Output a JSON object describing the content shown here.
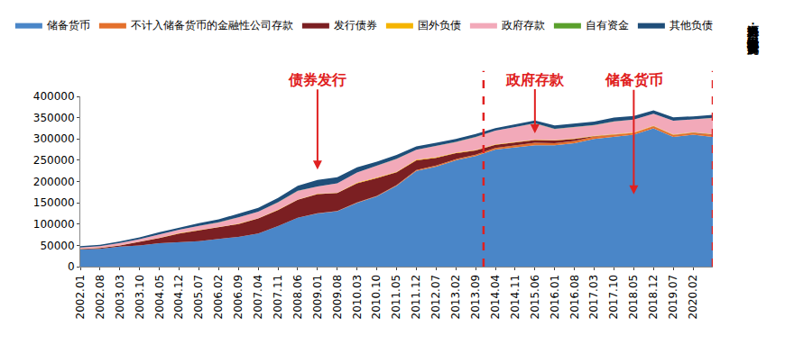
{
  "chart_data": {
    "type": "area",
    "stacked": true,
    "grid": false,
    "legend": "top",
    "source": "资料来源：中国人民银行  华西证券研究所",
    "categories": [
      "2002.01",
      "2002.08",
      "2003.03",
      "2003.10",
      "2004.05",
      "2004.12",
      "2005.07",
      "2006.02",
      "2006.09",
      "2007.04",
      "2007.11",
      "2008.06",
      "2009.01",
      "2009.08",
      "2010.03",
      "2010.10",
      "2011.05",
      "2011.12",
      "2012.07",
      "2013.02",
      "2013.09",
      "2014.04",
      "2014.11",
      "2015.06",
      "2016.01",
      "2016.08",
      "2017.03",
      "2017.10",
      "2018.05",
      "2018.12",
      "2019.07",
      "2020.02",
      null
    ],
    "ylim": [
      0,
      400000
    ],
    "yticks": [
      0,
      50000,
      100000,
      150000,
      200000,
      250000,
      300000,
      350000,
      400000
    ],
    "series": [
      {
        "name": "储备货币",
        "color": "#4a86c8",
        "values": [
          40000,
          42000,
          47000,
          50000,
          55000,
          58000,
          60000,
          65000,
          70000,
          78000,
          95000,
          115000,
          125000,
          130000,
          150000,
          165000,
          190000,
          225000,
          235000,
          250000,
          260000,
          275000,
          280000,
          285000,
          285000,
          290000,
          300000,
          305000,
          310000,
          325000,
          305000,
          310000,
          305000
        ]
      },
      {
        "name": "不计入储备货币的金融性公司存款",
        "color": "#e4702c",
        "values": [
          0,
          0,
          0,
          0,
          0,
          0,
          0,
          0,
          0,
          0,
          0,
          0,
          500,
          800,
          1000,
          1200,
          1500,
          2000,
          2500,
          2500,
          3000,
          4000,
          5000,
          6000,
          5000,
          5000,
          5500,
          5000,
          4500,
          4500,
          4000,
          4000,
          4500
        ]
      },
      {
        "name": "发行债券",
        "color": "#7b1f22",
        "values": [
          1500,
          2000,
          3000,
          8000,
          12000,
          20000,
          25000,
          28000,
          30000,
          35000,
          38000,
          42000,
          45000,
          42000,
          45000,
          42000,
          30000,
          23000,
          18000,
          14000,
          10000,
          7000,
          6500,
          6500,
          6500,
          5000,
          1000,
          0,
          0,
          700,
          700,
          900,
          900
        ]
      },
      {
        "name": "国外负债",
        "color": "#f5b400",
        "values": [
          400,
          400,
          500,
          500,
          600,
          600,
          700,
          800,
          900,
          900,
          900,
          900,
          900,
          1000,
          1200,
          1400,
          1500,
          1500,
          1400,
          1300,
          1300,
          1400,
          1500,
          1100,
          1000,
          1000,
          900,
          900,
          1000,
          1000,
          900,
          1000,
          1000
        ]
      },
      {
        "name": "政府存款",
        "color": "#f2a9b9",
        "values": [
          3000,
          3500,
          5000,
          6000,
          8000,
          8000,
          10000,
          10000,
          15000,
          15000,
          17000,
          20000,
          17000,
          22000,
          24000,
          27000,
          30000,
          23000,
          27000,
          25000,
          30000,
          32000,
          35000,
          38000,
          26000,
          27000,
          25000,
          30000,
          30000,
          28000,
          32000,
          30000,
          38000
        ]
      },
      {
        "name": "自有资金",
        "color": "#5aa02c",
        "values": [
          220,
          220,
          220,
          220,
          220,
          220,
          220,
          220,
          220,
          220,
          220,
          220,
          220,
          220,
          220,
          220,
          220,
          220,
          220,
          220,
          220,
          220,
          220,
          220,
          220,
          220,
          220,
          220,
          220,
          220,
          220,
          220,
          220
        ]
      },
      {
        "name": "其他负债",
        "color": "#1f4e79",
        "values": [
          3000,
          3000,
          3500,
          4000,
          5000,
          5000,
          6000,
          7000,
          8000,
          9000,
          10000,
          12000,
          15000,
          14000,
          12000,
          10000,
          9000,
          8000,
          7000,
          7000,
          7000,
          6000,
          6000,
          6500,
          8000,
          8000,
          8000,
          9000,
          8000,
          8000,
          8000,
          7000,
          7000
        ]
      }
    ],
    "annotations": [
      {
        "text": "债券发行",
        "category": "2009.01",
        "y": 228000
      },
      {
        "text": "政府存款",
        "category": "2015.06",
        "y": 313000
      },
      {
        "text": "储备货币",
        "category": "2018.05",
        "y": 170000
      }
    ]
  }
}
